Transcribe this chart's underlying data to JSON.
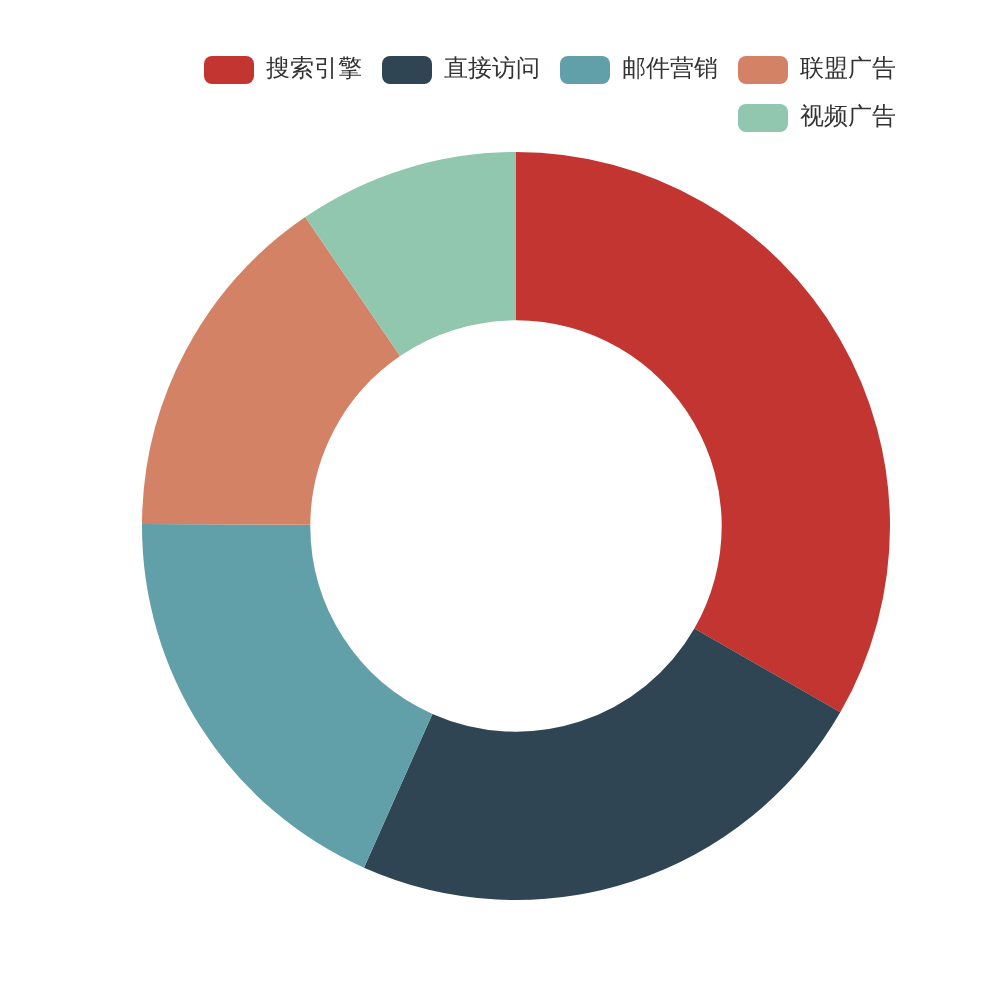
{
  "chart_data": {
    "type": "donut",
    "categories": [
      "搜索引擎",
      "直接访问",
      "邮件营销",
      "联盟广告",
      "视频广告"
    ],
    "values": [
      33.3,
      23.36,
      18.43,
      15.38,
      9.53
    ],
    "colors": [
      "#c23531",
      "#2f4554",
      "#61a0a8",
      "#d48265",
      "#91c7ae"
    ],
    "legend": "top right"
  }
}
